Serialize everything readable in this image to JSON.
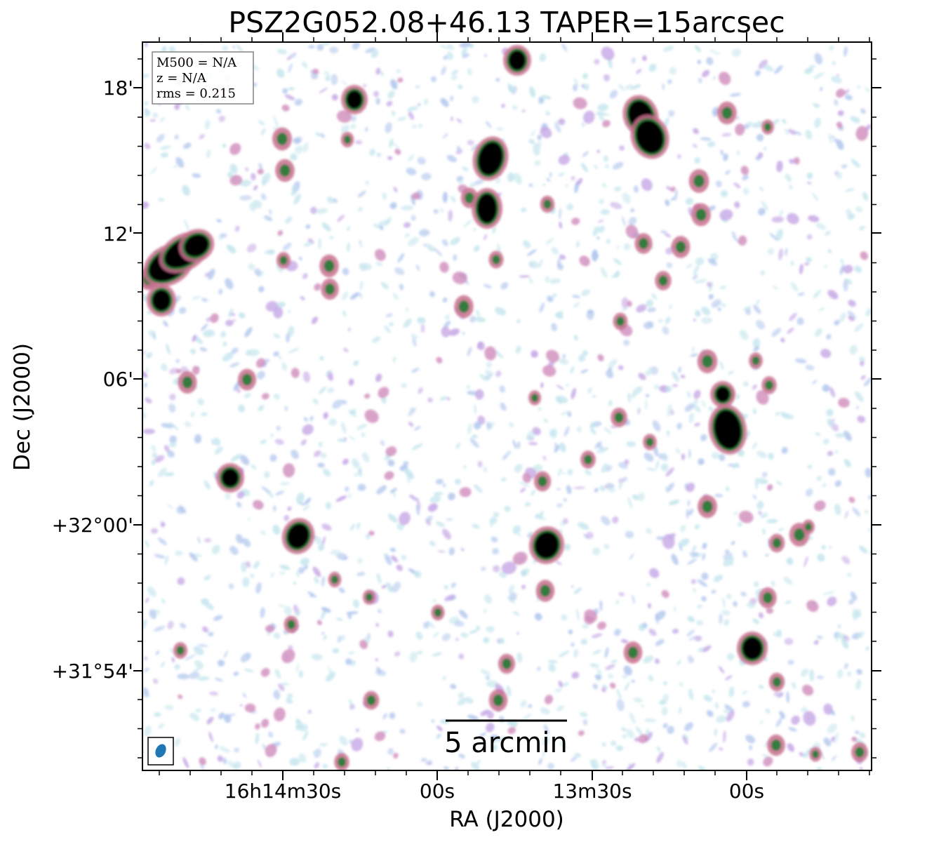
{
  "title": "PSZ2G052.08+46.13 TAPER=15arcsec",
  "info_box": {
    "line1": "M500 = N/A",
    "line2": "z = N/A",
    "line3": "rms = 0.215"
  },
  "axes": {
    "xlabel": "RA (J2000)",
    "ylabel": "Dec (J2000)",
    "x_ticks": [
      "16h14m30s",
      "00s",
      "13m30s",
      "00s"
    ],
    "y_ticks": [
      "18'",
      "12'",
      "06'",
      "+32°00'",
      "+31°54'"
    ]
  },
  "scale_bar": {
    "label": "5 arcmin"
  },
  "colors": {
    "noise_light": "#c6e6ee",
    "noise_blue": "#b3c8ee",
    "noise_lilac": "#c6a8e6",
    "magenta": "#d08cbc",
    "pink": "#c8708e",
    "green": "#2c7a3a",
    "source": "#000000",
    "beam": "#1f77b4"
  }
}
